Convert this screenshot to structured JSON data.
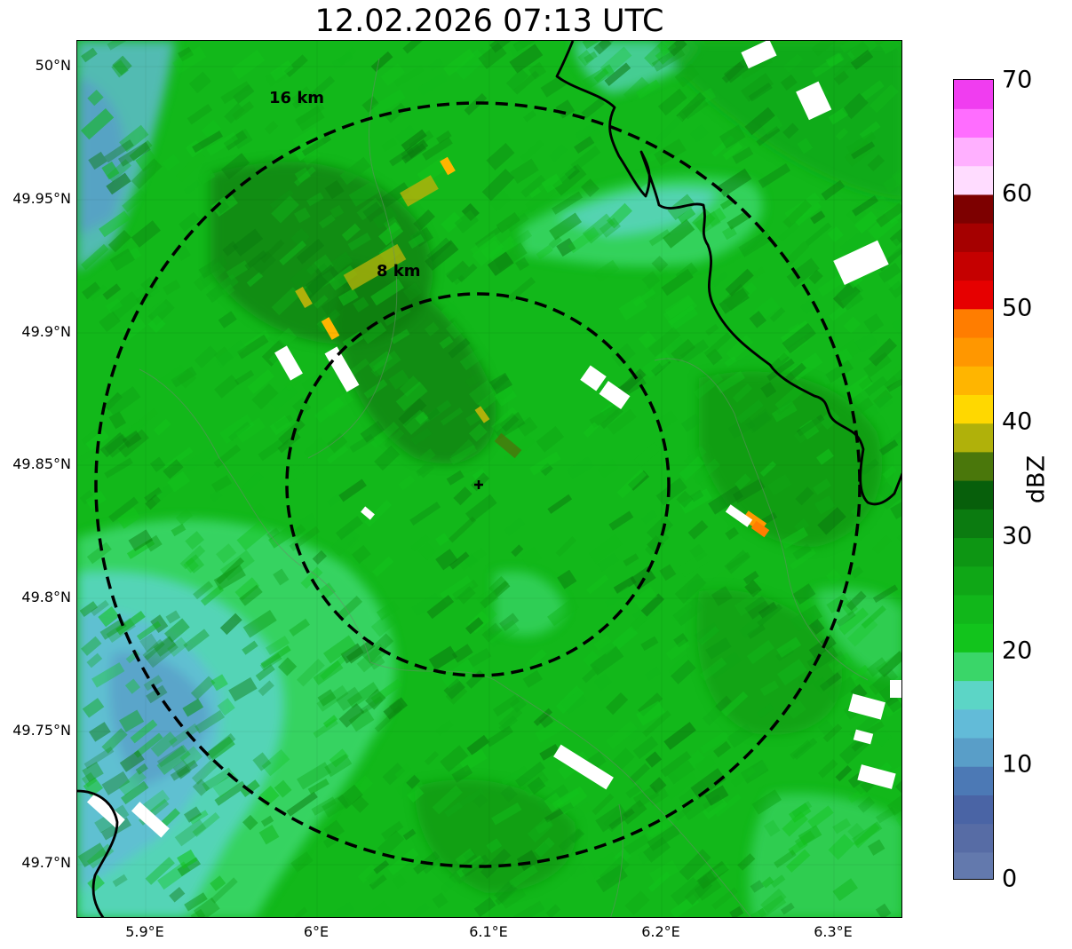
{
  "title": "12.02.2026 07:13 UTC",
  "map": {
    "lat_ticks": [
      "50°N",
      "49.95°N",
      "49.9°N",
      "49.85°N",
      "49.8°N",
      "49.75°N",
      "49.7°N"
    ],
    "lon_ticks": [
      "5.9°E",
      "6°E",
      "6.1°E",
      "6.2°E",
      "6.3°E"
    ],
    "rings": [
      {
        "label": "16 km",
        "radius_km": 16
      },
      {
        "label": "8 km",
        "radius_km": 8
      }
    ],
    "radar_center_marker": "plus-icon",
    "base_color": "#12b81a"
  },
  "colorbar": {
    "unit": "dBZ",
    "tick_labels": [
      "0",
      "10",
      "20",
      "30",
      "40",
      "50",
      "60",
      "70"
    ],
    "colors": [
      "#6379ad",
      "#576ca5",
      "#4a64a5",
      "#4c79b5",
      "#599ec8",
      "#62bbd8",
      "#5cd5c6",
      "#3ad669",
      "#12c41c",
      "#11b71a",
      "#0fa716",
      "#0d9613",
      "#0b7b10",
      "#075f0b",
      "#4a770b",
      "#b0b10a",
      "#ffd800",
      "#ffb500",
      "#ff9700",
      "#ff7d00",
      "#e60000",
      "#c50000",
      "#a50000",
      "#7d0000",
      "#ffdcff",
      "#ffb0ff",
      "#ff6dff",
      "#f03df0"
    ]
  }
}
